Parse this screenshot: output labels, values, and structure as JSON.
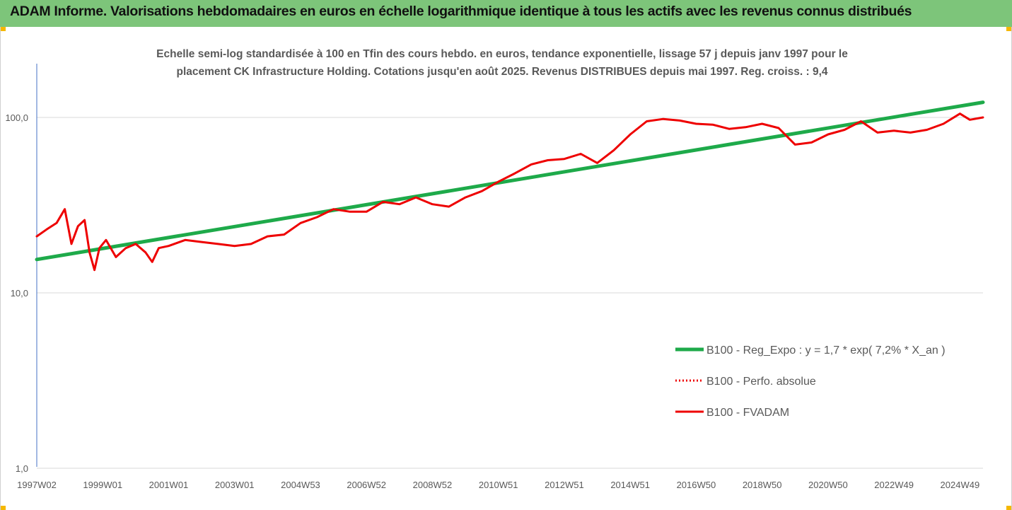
{
  "header": {
    "title": "ADAM Informe. Valorisations hebdomadaires en euros en échelle logarithmique identique à tous les actifs avec les revenus connus distribués"
  },
  "colors": {
    "header_bg": "#7dc57a",
    "green_series": "#1eaa4a",
    "red_series": "#ee0000",
    "grid": "#d9d9d9"
  },
  "chart_data": {
    "type": "line",
    "title_lines": [
      "Echelle semi-log standardisée à 100 en Tfin des cours hebdo. en euros, tendance exponentielle, lissage 57 j depuis janv 1997 pour le",
      "placement CK Infrastructure Holding. Cotations jusqu'en août 2025. Revenus DISTRIBUES depuis mai 1997. Reg. croiss. : 9,4"
    ],
    "y_scale": "log",
    "ylim": [
      1,
      200
    ],
    "xlim": [
      1997.0,
      2025.7
    ],
    "y_ticks": [
      {
        "value": 1,
        "label": "1,0"
      },
      {
        "value": 10,
        "label": "10,0"
      },
      {
        "value": 100,
        "label": "100,0"
      }
    ],
    "x_ticks": [
      {
        "value": 1997.0,
        "label": "1997W02"
      },
      {
        "value": 1999.0,
        "label": "1999W01"
      },
      {
        "value": 2001.0,
        "label": "2001W01"
      },
      {
        "value": 2003.0,
        "label": "2003W01"
      },
      {
        "value": 2005.0,
        "label": "2004W53"
      },
      {
        "value": 2007.0,
        "label": "2006W52"
      },
      {
        "value": 2009.0,
        "label": "2008W52"
      },
      {
        "value": 2011.0,
        "label": "2010W51"
      },
      {
        "value": 2013.0,
        "label": "2012W51"
      },
      {
        "value": 2015.0,
        "label": "2014W51"
      },
      {
        "value": 2017.0,
        "label": "2016W50"
      },
      {
        "value": 2019.0,
        "label": "2018W50"
      },
      {
        "value": 2021.0,
        "label": "2020W50"
      },
      {
        "value": 2023.0,
        "label": "2022W49"
      },
      {
        "value": 2025.0,
        "label": "2024W49"
      }
    ],
    "grid": "horizontal",
    "legend_position": "bottom-right",
    "series": [
      {
        "name": "B100 - Reg_Expo : y = 1,7 * exp( 7,2% *  X_an )",
        "style": "solid-thick",
        "color": "#1eaa4a",
        "x": [
          1997.0,
          2025.7
        ],
        "y": [
          15.5,
          122
        ]
      },
      {
        "name": "B100 - Perfo. absolue",
        "style": "dotted",
        "color": "#ee0000",
        "x": [],
        "y": []
      },
      {
        "name": "B100 - FVADAM",
        "style": "solid",
        "color": "#ee0000",
        "x": [
          1997.0,
          1997.3,
          1997.6,
          1997.85,
          1998.05,
          1998.25,
          1998.45,
          1998.6,
          1998.75,
          1998.9,
          1999.1,
          1999.4,
          1999.7,
          2000.0,
          2000.3,
          2000.5,
          2000.7,
          2001.0,
          2001.5,
          2002.0,
          2002.5,
          2003.0,
          2003.5,
          2004.0,
          2004.5,
          2005.0,
          2005.5,
          2006.0,
          2006.5,
          2007.0,
          2007.5,
          2008.0,
          2008.5,
          2009.0,
          2009.5,
          2010.0,
          2010.5,
          2011.0,
          2011.5,
          2012.0,
          2012.5,
          2013.0,
          2013.5,
          2014.0,
          2014.5,
          2015.0,
          2015.5,
          2016.0,
          2016.5,
          2017.0,
          2017.5,
          2018.0,
          2018.5,
          2019.0,
          2019.5,
          2020.0,
          2020.5,
          2021.0,
          2021.5,
          2022.0,
          2022.5,
          2023.0,
          2023.5,
          2024.0,
          2024.5,
          2025.0,
          2025.3,
          2025.7
        ],
        "y": [
          21,
          23,
          25,
          30,
          19,
          24,
          26,
          17,
          13.5,
          18,
          20,
          16,
          18,
          19,
          17,
          15,
          18,
          18.5,
          20,
          19.5,
          19,
          18.5,
          19,
          21,
          21.5,
          25,
          27,
          30,
          29,
          29,
          33,
          32,
          35,
          32,
          31,
          35,
          38,
          43,
          48,
          54,
          57,
          58,
          62,
          55,
          65,
          80,
          95,
          98,
          96,
          92,
          91,
          86,
          88,
          92,
          87,
          70,
          72,
          80,
          85,
          95,
          82,
          84,
          82,
          85,
          92,
          105,
          97,
          100
        ]
      }
    ]
  }
}
